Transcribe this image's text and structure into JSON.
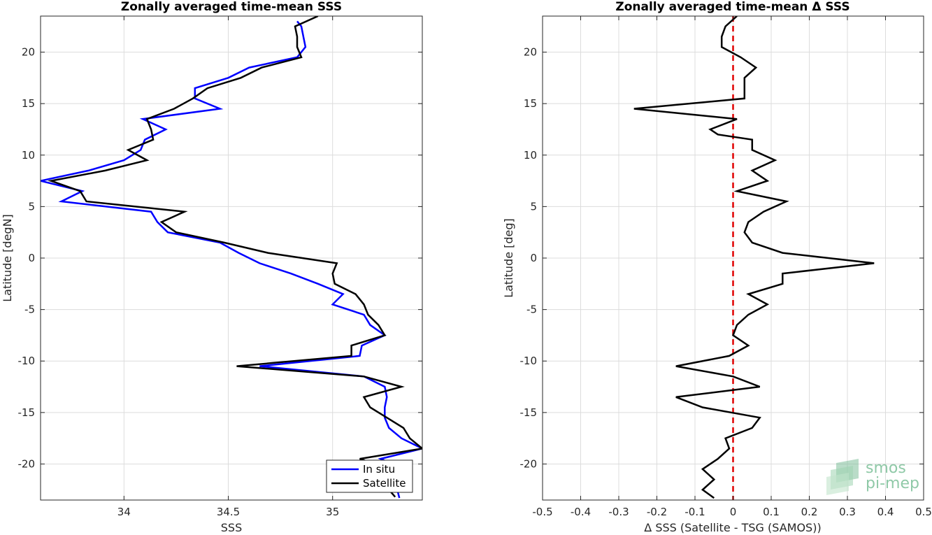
{
  "chart_data": [
    {
      "type": "line",
      "title": "Zonally averaged time-mean SSS",
      "xlabel": "SSS",
      "ylabel": "Latitude [degN]",
      "xlim": [
        33.6,
        35.43
      ],
      "ylim": [
        -23.5,
        23.5
      ],
      "xticks": [
        34,
        34.5,
        35
      ],
      "xtick_labels": [
        "34",
        "34.5",
        "35"
      ],
      "yticks": [
        -20,
        -15,
        -10,
        -5,
        0,
        5,
        10,
        15,
        20
      ],
      "ytick_labels": [
        "-20",
        "-15",
        "-10",
        "-5",
        "0",
        "5",
        "10",
        "15",
        "20"
      ],
      "grid": true,
      "legend_position": "bottom-right",
      "series": [
        {
          "name": "In situ",
          "color": "#0000ff",
          "points": [
            [
              34.83,
              23
            ],
            [
              34.85,
              22.5
            ],
            [
              34.86,
              21.5
            ],
            [
              34.87,
              20.5
            ],
            [
              34.83,
              19.5
            ],
            [
              34.6,
              18.5
            ],
            [
              34.5,
              17.5
            ],
            [
              34.34,
              16.5
            ],
            [
              34.34,
              15.5
            ],
            [
              34.46,
              14.5
            ],
            [
              34.09,
              13.5
            ],
            [
              34.2,
              12.5
            ],
            [
              34.1,
              11.5
            ],
            [
              34.08,
              10.5
            ],
            [
              34.0,
              9.5
            ],
            [
              33.83,
              8.5
            ],
            [
              33.6,
              7.5
            ],
            [
              33.8,
              6.5
            ],
            [
              33.7,
              5.5
            ],
            [
              34.13,
              4.5
            ],
            [
              34.16,
              3.5
            ],
            [
              34.21,
              2.5
            ],
            [
              34.46,
              1.5
            ],
            [
              34.55,
              0.5
            ],
            [
              34.65,
              -0.5
            ],
            [
              34.8,
              -1.5
            ],
            [
              34.93,
              -2.5
            ],
            [
              35.05,
              -3.5
            ],
            [
              35.0,
              -4.5
            ],
            [
              35.15,
              -5.5
            ],
            [
              35.18,
              -6.5
            ],
            [
              35.25,
              -7.5
            ],
            [
              35.14,
              -8.5
            ],
            [
              35.13,
              -9.5
            ],
            [
              34.65,
              -10.5
            ],
            [
              35.15,
              -11.5
            ],
            [
              35.25,
              -12.5
            ],
            [
              35.26,
              -13.5
            ],
            [
              35.25,
              -14.5
            ],
            [
              35.25,
              -15.5
            ],
            [
              35.27,
              -16.5
            ],
            [
              35.33,
              -17.5
            ],
            [
              35.43,
              -18.5
            ],
            [
              35.23,
              -19.5
            ],
            [
              35.35,
              -20.5
            ],
            [
              35.3,
              -21.5
            ],
            [
              35.31,
              -22.5
            ],
            [
              35.32,
              -23.3
            ]
          ]
        },
        {
          "name": "Satellite",
          "color": "#000000",
          "points": [
            [
              34.93,
              23.5
            ],
            [
              34.82,
              22.5
            ],
            [
              34.83,
              21.5
            ],
            [
              34.83,
              20.5
            ],
            [
              34.85,
              19.5
            ],
            [
              34.66,
              18.5
            ],
            [
              34.56,
              17.5
            ],
            [
              34.4,
              16.5
            ],
            [
              34.33,
              15.5
            ],
            [
              34.24,
              14.5
            ],
            [
              34.11,
              13.5
            ],
            [
              34.13,
              12.5
            ],
            [
              34.14,
              11.5
            ],
            [
              34.02,
              10.5
            ],
            [
              34.11,
              9.5
            ],
            [
              33.91,
              8.5
            ],
            [
              33.65,
              7.5
            ],
            [
              33.79,
              6.5
            ],
            [
              33.82,
              5.5
            ],
            [
              34.29,
              4.5
            ],
            [
              34.18,
              3.5
            ],
            [
              34.25,
              2.5
            ],
            [
              34.48,
              1.5
            ],
            [
              34.69,
              0.5
            ],
            [
              35.02,
              -0.5
            ],
            [
              35.0,
              -1.5
            ],
            [
              35.01,
              -2.5
            ],
            [
              35.11,
              -3.5
            ],
            [
              35.15,
              -4.5
            ],
            [
              35.17,
              -5.5
            ],
            [
              35.22,
              -6.5
            ],
            [
              35.25,
              -7.5
            ],
            [
              35.09,
              -8.5
            ],
            [
              35.09,
              -9.5
            ],
            [
              34.54,
              -10.5
            ],
            [
              35.15,
              -11.5
            ],
            [
              35.33,
              -12.5
            ],
            [
              35.15,
              -13.5
            ],
            [
              35.18,
              -14.5
            ],
            [
              35.26,
              -15.5
            ],
            [
              35.34,
              -16.5
            ],
            [
              35.37,
              -17.5
            ],
            [
              35.43,
              -18.5
            ],
            [
              35.13,
              -19.5
            ],
            [
              35.28,
              -20.5
            ],
            [
              35.25,
              -21.5
            ],
            [
              35.27,
              -22.5
            ],
            [
              35.3,
              -23.2
            ]
          ]
        }
      ]
    },
    {
      "type": "line",
      "title": "Zonally averaged time-mean Δ SSS",
      "xlabel": "Δ SSS (Satellite - TSG (SAMOS))",
      "ylabel": "Latitude [deg]",
      "xlim": [
        -0.5,
        0.5
      ],
      "ylim": [
        -23.5,
        23.5
      ],
      "xticks": [
        -0.5,
        -0.4,
        -0.3,
        -0.2,
        -0.1,
        0,
        0.1,
        0.2,
        0.3,
        0.4,
        0.5
      ],
      "xtick_labels": [
        "-0.5",
        "-0.4",
        "-0.3",
        "-0.2",
        "-0.1",
        "0",
        "0.1",
        "0.2",
        "0.3",
        "0.4",
        "0.5"
      ],
      "yticks": [
        -20,
        -15,
        -10,
        -5,
        0,
        5,
        10,
        15,
        20
      ],
      "ytick_labels": [
        "-20",
        "-15",
        "-10",
        "-5",
        "0",
        "5",
        "10",
        "15",
        "20"
      ],
      "grid": true,
      "reference_line": {
        "x": 0,
        "color": "#e00000",
        "style": "dashed"
      },
      "series": [
        {
          "color": "#000000",
          "points": [
            [
              0.01,
              23.5
            ],
            [
              -0.02,
              22.5
            ],
            [
              -0.03,
              21.5
            ],
            [
              -0.03,
              20.5
            ],
            [
              0.02,
              19.5
            ],
            [
              0.06,
              18.5
            ],
            [
              0.03,
              17.5
            ],
            [
              0.03,
              16.5
            ],
            [
              0.03,
              15.5
            ],
            [
              -0.26,
              14.5
            ],
            [
              0.01,
              13.5
            ],
            [
              -0.06,
              12.5
            ],
            [
              -0.04,
              12.0
            ],
            [
              0.05,
              11.5
            ],
            [
              0.05,
              10.5
            ],
            [
              0.11,
              9.5
            ],
            [
              0.05,
              8.5
            ],
            [
              0.09,
              7.5
            ],
            [
              0.01,
              6.5
            ],
            [
              0.14,
              5.5
            ],
            [
              0.08,
              4.5
            ],
            [
              0.04,
              3.5
            ],
            [
              0.03,
              2.5
            ],
            [
              0.05,
              1.5
            ],
            [
              0.13,
              0.5
            ],
            [
              0.37,
              -0.5
            ],
            [
              0.13,
              -1.5
            ],
            [
              0.13,
              -2.5
            ],
            [
              0.04,
              -3.5
            ],
            [
              0.09,
              -4.5
            ],
            [
              0.04,
              -5.5
            ],
            [
              0.01,
              -6.5
            ],
            [
              0.0,
              -7.5
            ],
            [
              0.04,
              -8.5
            ],
            [
              -0.01,
              -9.5
            ],
            [
              -0.15,
              -10.5
            ],
            [
              0.0,
              -11.5
            ],
            [
              0.07,
              -12.5
            ],
            [
              -0.15,
              -13.5
            ],
            [
              -0.08,
              -14.5
            ],
            [
              0.07,
              -15.5
            ],
            [
              0.05,
              -16.5
            ],
            [
              -0.02,
              -17.5
            ],
            [
              -0.01,
              -18.5
            ],
            [
              -0.04,
              -19.5
            ],
            [
              -0.08,
              -20.5
            ],
            [
              -0.05,
              -21.5
            ],
            [
              -0.08,
              -22.5
            ],
            [
              -0.05,
              -23.3
            ]
          ]
        }
      ]
    }
  ],
  "legend": {
    "entries": [
      "In situ",
      "Satellite"
    ]
  },
  "watermark": {
    "line1": "smos",
    "line2": "pi-mep"
  }
}
